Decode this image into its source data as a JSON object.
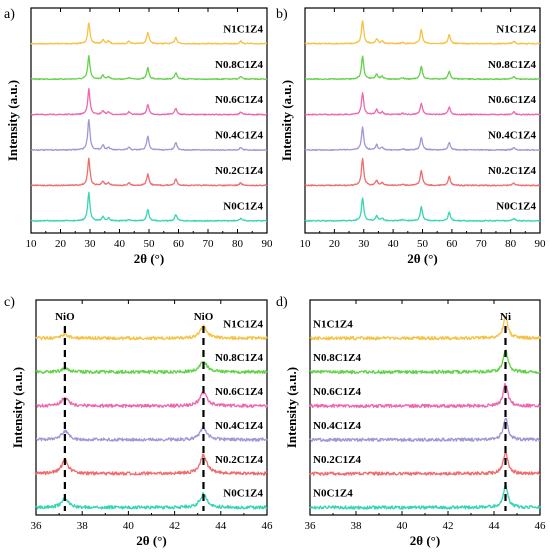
{
  "panel_labels": [
    "a)",
    "b)",
    "c)",
    "d)"
  ],
  "colors": {
    "N1C1Z4": "#f5c243",
    "N0.8C1Z4": "#63d24a",
    "N0.6C1Z4": "#ee67ad",
    "N0.4C1Z4": "#9d98d6",
    "N0.2C1Z4": "#f06b6b",
    "N0C1Z4": "#36d5b3"
  },
  "chart_data": [
    {
      "panel": "a)",
      "type": "line",
      "xlabel": "2θ (°)",
      "ylabel": "Intensity (a.u.)",
      "xlim": [
        10,
        90
      ],
      "xticks": [
        "10",
        "20",
        "30",
        "40",
        "50",
        "60",
        "70",
        "80",
        "90"
      ],
      "yticks": "none",
      "stacked": true,
      "peaks_2theta": [
        29.6,
        34.4,
        36.3,
        43.2,
        49.6,
        59.1,
        81.1
      ],
      "series": [
        {
          "name": "N1C1Z4",
          "peak_heights": [
            0.8,
            0.15,
            0.1,
            0.1,
            0.45,
            0.25,
            0.1
          ]
        },
        {
          "name": "N0.8C1Z4",
          "peak_heights": [
            0.9,
            0.15,
            0.1,
            0.05,
            0.45,
            0.25,
            0.1
          ]
        },
        {
          "name": "N0.6C1Z4",
          "peak_heights": [
            1.0,
            0.15,
            0.1,
            0.1,
            0.4,
            0.25,
            0.1
          ]
        },
        {
          "name": "N0.4C1Z4",
          "peak_heights": [
            1.2,
            0.2,
            0.1,
            0.1,
            0.55,
            0.3,
            0.1
          ]
        },
        {
          "name": "N0.2C1Z4",
          "peak_heights": [
            1.05,
            0.15,
            0.1,
            0.1,
            0.45,
            0.25,
            0.1
          ]
        },
        {
          "name": "N0C1Z4",
          "peak_heights": [
            1.1,
            0.15,
            0.1,
            0.05,
            0.45,
            0.25,
            0.1
          ]
        }
      ]
    },
    {
      "panel": "b)",
      "type": "line",
      "xlabel": "2θ (°)",
      "ylabel": "Intensity (a.u.)",
      "xlim": [
        10,
        90
      ],
      "xticks": [
        "10",
        "20",
        "30",
        "40",
        "50",
        "60",
        "70",
        "80",
        "90"
      ],
      "yticks": "none",
      "stacked": true,
      "peaks_2theta": [
        29.6,
        34.4,
        36.3,
        43.2,
        49.6,
        59.1,
        81.1
      ],
      "series": [
        {
          "name": "N1C1Z4",
          "peak_heights": [
            0.9,
            0.2,
            0.1,
            0.05,
            0.55,
            0.35,
            0.1
          ]
        },
        {
          "name": "N0.8C1Z4",
          "peak_heights": [
            0.9,
            0.2,
            0.1,
            0.05,
            0.5,
            0.3,
            0.1
          ]
        },
        {
          "name": "N0.6C1Z4",
          "peak_heights": [
            0.85,
            0.2,
            0.1,
            0.05,
            0.45,
            0.3,
            0.1
          ]
        },
        {
          "name": "N0.4C1Z4",
          "peak_heights": [
            0.9,
            0.2,
            0.1,
            0.05,
            0.5,
            0.3,
            0.1
          ]
        },
        {
          "name": "N0.2C1Z4",
          "peak_heights": [
            1.05,
            0.2,
            0.1,
            0.05,
            0.6,
            0.35,
            0.1
          ]
        },
        {
          "name": "N0C1Z4",
          "peak_heights": [
            0.9,
            0.2,
            0.1,
            0.05,
            0.55,
            0.35,
            0.1
          ]
        }
      ]
    },
    {
      "panel": "c)",
      "type": "line",
      "xlabel": "2θ (°)",
      "ylabel": "Intensity (a.u.)",
      "xlim": [
        36,
        46
      ],
      "xticks": [
        "36",
        "38",
        "40",
        "42",
        "44",
        "46"
      ],
      "yticks": "none",
      "stacked": true,
      "annotations": [
        {
          "text": "NiO",
          "x": 37.25
        },
        {
          "text": "NiO",
          "x": 43.25
        }
      ],
      "peaks_2theta": [
        37.25,
        43.25
      ],
      "series": [
        {
          "name": "N1C1Z4",
          "peak_heights": [
            0.15,
            0.5
          ]
        },
        {
          "name": "N0.8C1Z4",
          "peak_heights": [
            0.15,
            0.45
          ]
        },
        {
          "name": "N0.6C1Z4",
          "peak_heights": [
            0.35,
            0.55
          ]
        },
        {
          "name": "N0.4C1Z4",
          "peak_heights": [
            0.35,
            0.5
          ]
        },
        {
          "name": "N0.2C1Z4",
          "peak_heights": [
            0.55,
            0.75
          ]
        },
        {
          "name": "N0C1Z4",
          "peak_heights": [
            0.35,
            0.55
          ]
        }
      ]
    },
    {
      "panel": "d)",
      "type": "line",
      "xlabel": "2θ (°)",
      "ylabel": "Intensity (a.u.)",
      "xlim": [
        36,
        46
      ],
      "xticks": [
        "36",
        "38",
        "40",
        "42",
        "44",
        "46"
      ],
      "yticks": "none",
      "stacked": true,
      "annotations": [
        {
          "text": "Ni",
          "x": 44.5
        }
      ],
      "peaks_2theta": [
        44.5
      ],
      "series": [
        {
          "name": "N1C1Z4",
          "peak_heights": [
            0.9
          ]
        },
        {
          "name": "N0.8C1Z4",
          "peak_heights": [
            0.9
          ]
        },
        {
          "name": "N0.6C1Z4",
          "peak_heights": [
            0.9
          ]
        },
        {
          "name": "N0.4C1Z4",
          "peak_heights": [
            0.9
          ]
        },
        {
          "name": "N0.2C1Z4",
          "peak_heights": [
            0.9
          ]
        },
        {
          "name": "N0C1Z4",
          "peak_heights": [
            0.9
          ]
        }
      ]
    }
  ]
}
